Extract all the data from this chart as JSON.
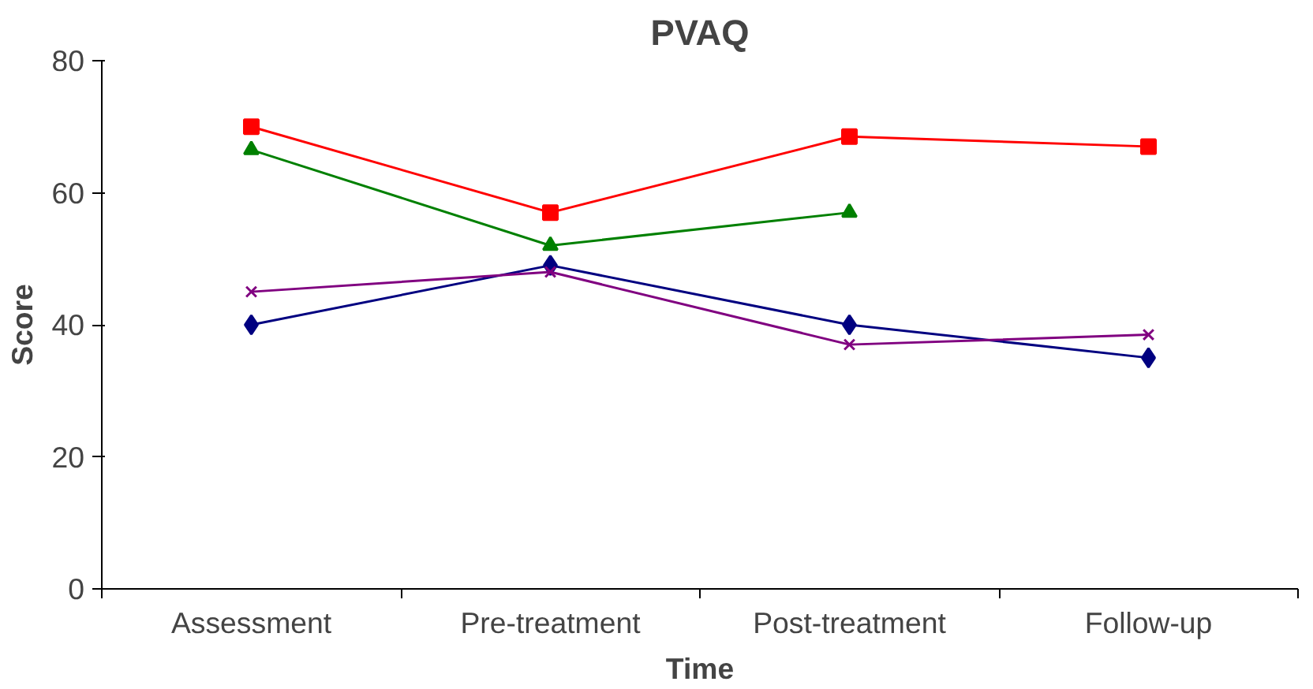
{
  "chart_data": {
    "type": "line",
    "title": "PVAQ",
    "xlabel": "Time",
    "ylabel": "Score",
    "categories": [
      "Assessment",
      "Pre-treatment",
      "Post-treatment",
      "Follow-up"
    ],
    "ylim": [
      0,
      80
    ],
    "yticks": [
      0,
      20,
      40,
      60,
      80
    ],
    "grid": false,
    "series": [
      {
        "color": "#000080",
        "marker": "diamond",
        "values": [
          40,
          49,
          40,
          35
        ]
      },
      {
        "color": "#ff0000",
        "marker": "square",
        "values": [
          70,
          57,
          68.5,
          67
        ]
      },
      {
        "color": "#008000",
        "marker": "triangle",
        "values": [
          66.5,
          52,
          57,
          null
        ]
      },
      {
        "color": "#800080",
        "marker": "cross",
        "values": [
          45,
          48,
          37,
          38.5
        ]
      }
    ]
  }
}
